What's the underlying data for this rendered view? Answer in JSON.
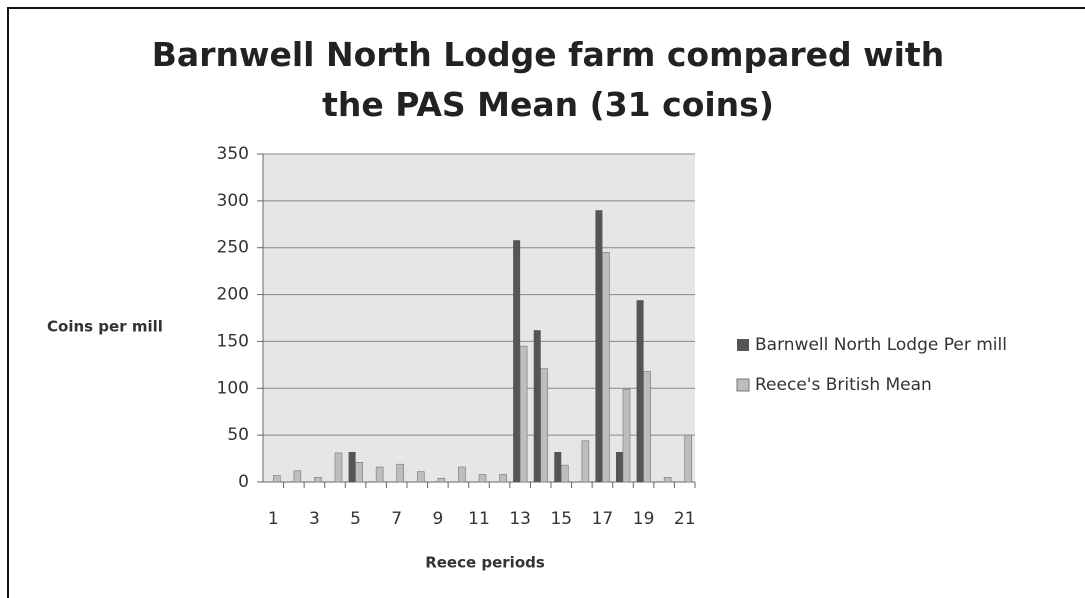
{
  "chart_data": {
    "type": "bar",
    "title": "Barnwell North Lodge farm compared with the PAS Mean (31 coins)",
    "x_label": "Reece periods",
    "y_label": "Coins per mill",
    "categories": [
      "1",
      null,
      "3",
      null,
      "5",
      null,
      "7",
      null,
      "9",
      null,
      "11",
      null,
      "13",
      null,
      "15",
      null,
      "17",
      null,
      "19",
      null,
      "21"
    ],
    "series": [
      {
        "name": "Barnwell North Lodge Per mill",
        "color": "#555555",
        "values": [
          0,
          0,
          0,
          0,
          32,
          0,
          0,
          0,
          0,
          0,
          0,
          0,
          258,
          162,
          32,
          0,
          290,
          32,
          194,
          0,
          0
        ]
      },
      {
        "name": "Reece's British Mean",
        "color": "#bdbdbd",
        "values": [
          7,
          12,
          5,
          31,
          21,
          16,
          19,
          11,
          4,
          16,
          8,
          8,
          145,
          121,
          18,
          44,
          245,
          99,
          118,
          5,
          50
        ]
      }
    ],
    "ylim": [
      0,
      350
    ],
    "yticks": [
      0,
      50,
      100,
      150,
      200,
      250,
      300,
      350
    ],
    "grid": true,
    "legend": "right"
  }
}
